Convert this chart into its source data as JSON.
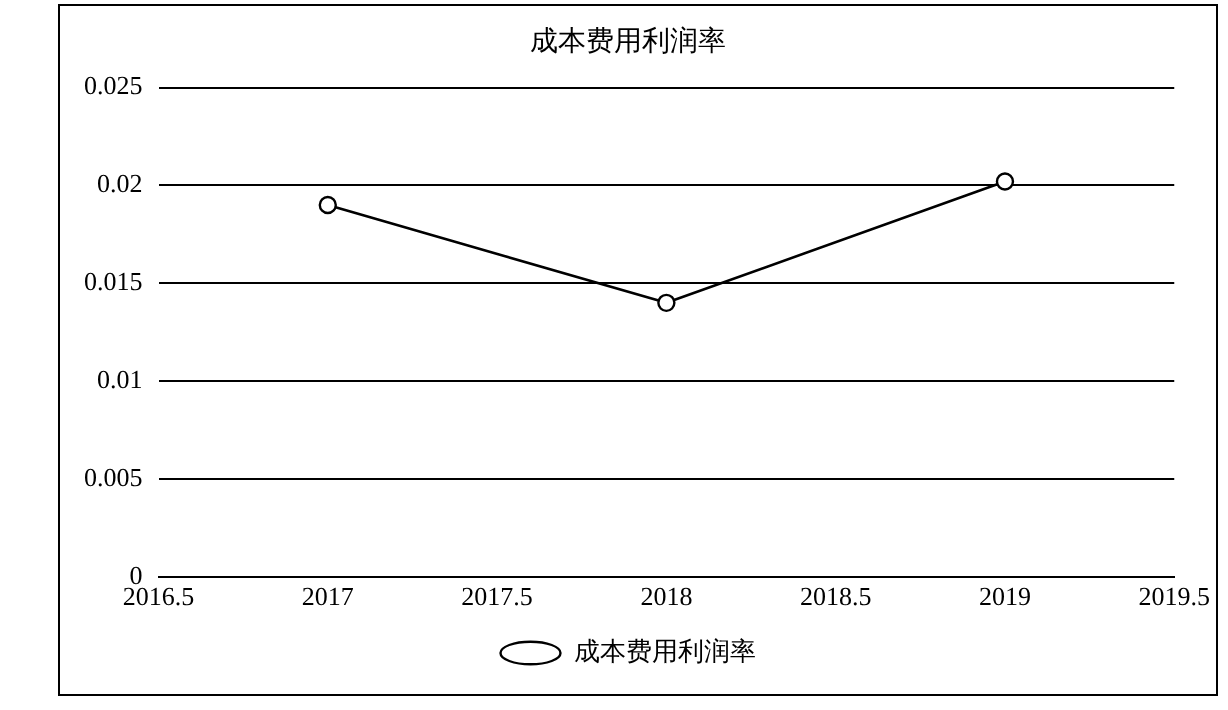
{
  "chart_data": {
    "type": "line",
    "title": "成本费用利润率",
    "x": [
      2017,
      2018,
      2019
    ],
    "series": [
      {
        "name": "成本费用利润率",
        "color": "#000000",
        "values": [
          0.019,
          0.014,
          0.0202
        ]
      }
    ],
    "xlim": [
      2016.5,
      2019.5
    ],
    "xticks": [
      2016.5,
      2017,
      2017.5,
      2018,
      2018.5,
      2019,
      2019.5
    ],
    "ylim": [
      0,
      0.025
    ],
    "yticks": [
      0,
      0.005,
      0.01,
      0.015,
      0.02,
      0.025
    ],
    "grid": "y",
    "legend": "bottom",
    "marker": "circle",
    "line_style": "solid"
  }
}
